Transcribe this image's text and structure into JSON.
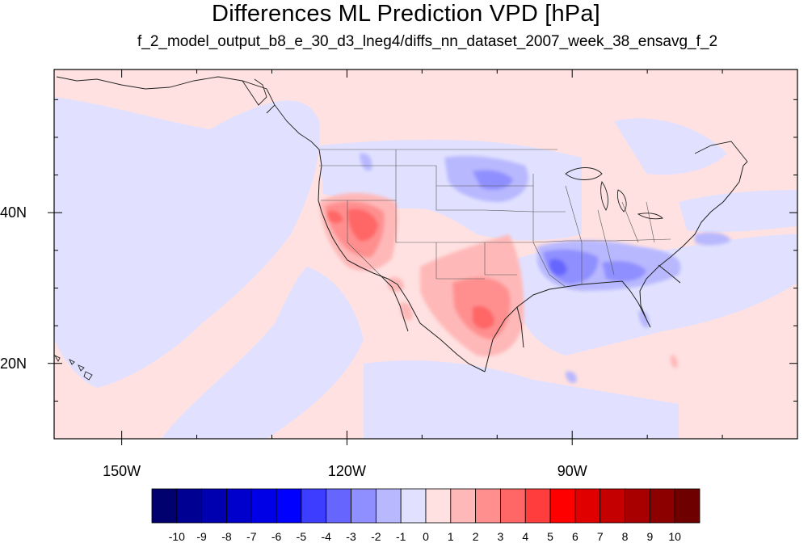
{
  "title": "Differences ML Prediction VPD [hPa]",
  "subtitle": "f_2_model_output_b8_e_30_d3_lneg4/diffs_nn_dataset_2007_week_38_ensavg_f_2",
  "map": {
    "projection": "cylindrical-equidistant",
    "lon_range": [
      -159,
      -60
    ],
    "lat_range": [
      10,
      59
    ],
    "lon_ticks": [
      {
        "value": -150,
        "label": "150W"
      },
      {
        "value": -120,
        "label": "120W"
      },
      {
        "value": -90,
        "label": "90W"
      }
    ],
    "lat_ticks": [
      {
        "value": 40,
        "label": "40N"
      },
      {
        "value": 20,
        "label": "20N"
      }
    ],
    "background_value_range": [
      -1,
      1
    ],
    "features": [
      {
        "region": "Central Valley / Nevada",
        "sign": "positive",
        "peak": 4
      },
      {
        "region": "Arizona / Mexico / Texas",
        "sign": "positive",
        "peak": 4
      },
      {
        "region": "Lower Mississippi Valley / Southeast",
        "sign": "negative",
        "peak": -4
      },
      {
        "region": "Northern Plains",
        "sign": "negative",
        "peak": -3
      }
    ]
  },
  "colorbar": {
    "labels": [
      "-10",
      "-9",
      "-8",
      "-7",
      "-6",
      "-5",
      "-4",
      "-3",
      "-2",
      "-1",
      "0",
      "1",
      "2",
      "3",
      "4",
      "5",
      "6",
      "7",
      "8",
      "9",
      "10"
    ],
    "colors": [
      "#00006e",
      "#000093",
      "#0000b0",
      "#0000cc",
      "#0000e6",
      "#0000ff",
      "#3d3dff",
      "#6666ff",
      "#8f8fff",
      "#b8b8ff",
      "#e1e1ff",
      "#ffe1e1",
      "#ffb8b8",
      "#ff8f8f",
      "#ff6666",
      "#ff3d3d",
      "#ff0000",
      "#e00000",
      "#c40000",
      "#a80000",
      "#8c0000",
      "#6e0000"
    ]
  }
}
